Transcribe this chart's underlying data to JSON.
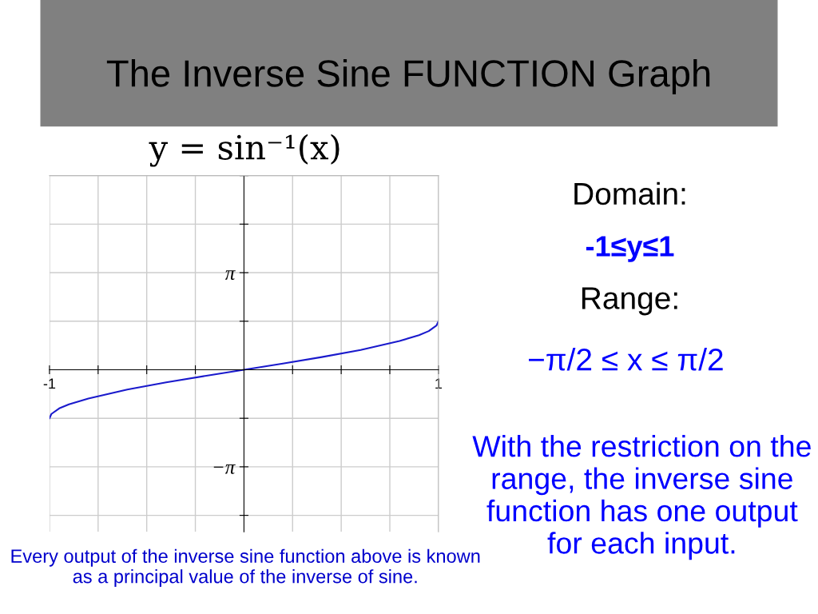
{
  "chart_data": {
    "type": "line",
    "title": "The Inverse Sine FUNCTION Graph",
    "subtitle": "y = sin⁻¹(x)",
    "x": [
      -1,
      -0.99,
      -0.95,
      -0.9,
      -0.8,
      -0.6,
      -0.4,
      -0.2,
      0,
      0.2,
      0.4,
      0.6,
      0.8,
      0.9,
      0.95,
      0.99,
      1
    ],
    "series": [
      {
        "color": "#1a1acc",
        "values": [
          -1.57,
          -1.43,
          -1.25,
          -1.12,
          -0.93,
          -0.64,
          -0.41,
          -0.2,
          0,
          0.2,
          0.41,
          0.64,
          0.93,
          1.12,
          1.25,
          1.43,
          1.57
        ]
      }
    ],
    "xlim": [
      -1,
      1
    ],
    "ylim": [
      -5.24,
      6.28
    ],
    "xticks": [
      {
        "value": -1,
        "label": "-1"
      },
      {
        "value": -0.75,
        "label": null
      },
      {
        "value": -0.5,
        "label": null
      },
      {
        "value": -0.25,
        "label": null
      },
      {
        "value": 0.25,
        "label": null
      },
      {
        "value": 0.5,
        "label": null
      },
      {
        "value": 0.75,
        "label": null
      },
      {
        "value": 1,
        "label": "1"
      }
    ],
    "yticks": [
      {
        "value": -4.71,
        "label": null
      },
      {
        "value": -3.14,
        "label": "−π"
      },
      {
        "value": -1.57,
        "label": null
      },
      {
        "value": 1.57,
        "label": null
      },
      {
        "value": 3.14,
        "label": "π"
      },
      {
        "value": 4.71,
        "label": null
      },
      {
        "value": 6.28,
        "label": null
      }
    ],
    "grid": true,
    "marker": "none",
    "line_style": "solid",
    "annotations": [
      "Domain:",
      "-1≤y≤1",
      "Range:",
      "−π/2 ≤ x ≤ π/2",
      "With the restriction on the range, the inverse sine function has one output for each input.",
      "Every output of the inverse sine function above is known as a principal value of the inverse of sine."
    ]
  }
}
